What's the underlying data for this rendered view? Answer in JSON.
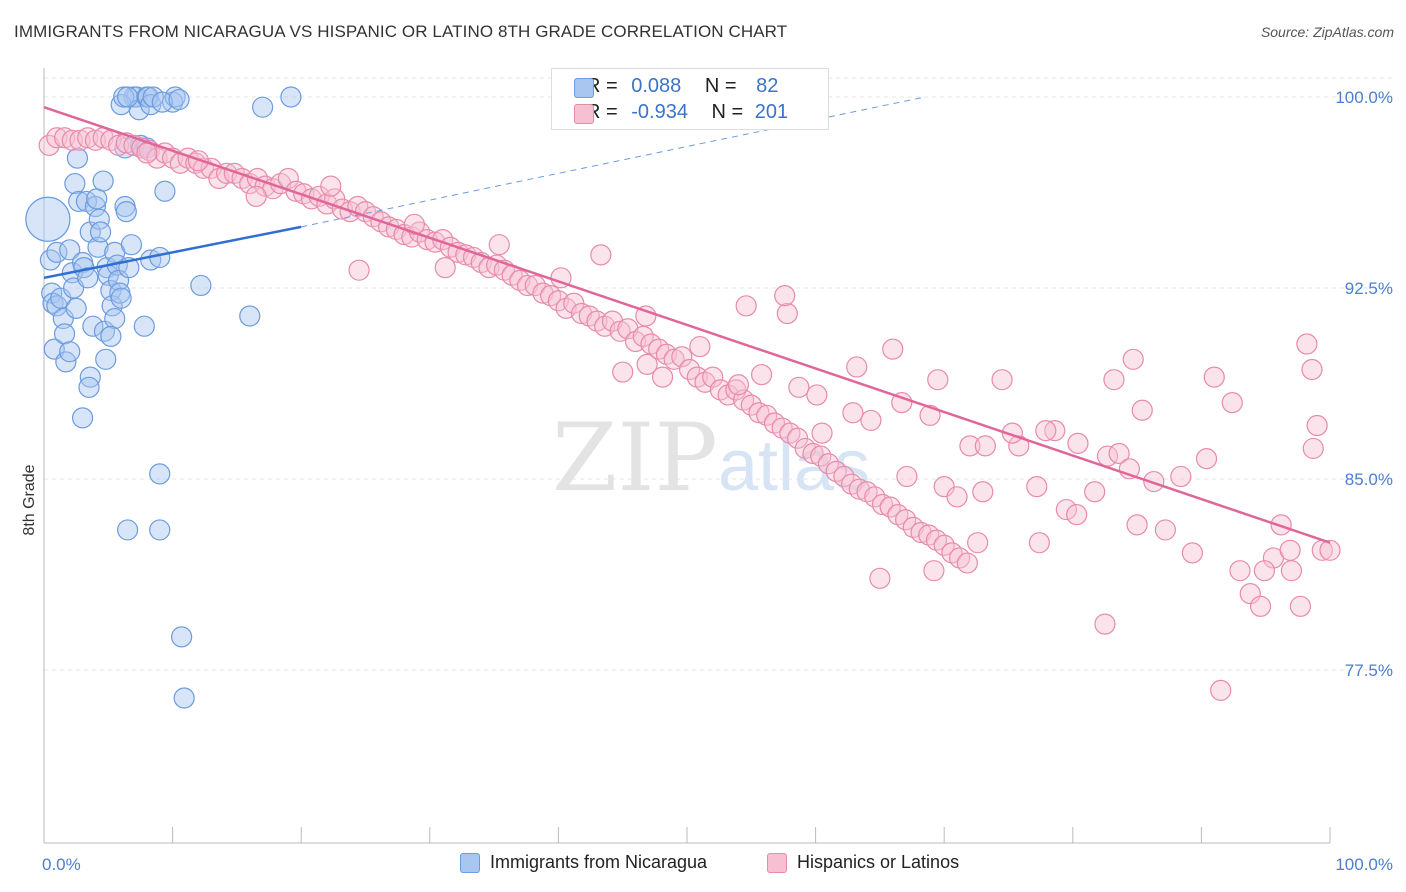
{
  "title": "IMMIGRANTS FROM NICARAGUA VS HISPANIC OR LATINO 8TH GRADE CORRELATION CHART",
  "source": "Source: ZipAtlas.com",
  "watermark": {
    "zip": "ZIP",
    "atlas": "atlas"
  },
  "legend": {
    "rows": [
      {
        "r_label": "R =",
        "r_value": "0.088",
        "n_label": "N =",
        "n_value": "82",
        "color": "#a9c6f0",
        "border": "#6b9be0"
      },
      {
        "r_label": "R =",
        "r_value": "-0.934",
        "n_label": "N =",
        "n_value": "201",
        "color": "#f7c0d2",
        "border": "#e88aaa"
      }
    ]
  },
  "bottom_legend": [
    {
      "label": "Immigrants from Nicaragua",
      "color": "#a9c6f0",
      "border": "#6b9be0"
    },
    {
      "label": "Hispanics or Latinos",
      "color": "#f7c0d2",
      "border": "#e88aaa"
    }
  ],
  "chart_data": {
    "type": "scatter",
    "title": "IMMIGRANTS FROM NICARAGUA VS HISPANIC OR LATINO 8TH GRADE CORRELATION CHART",
    "xlabel": "",
    "ylabel": "8th Grade",
    "xlim": [
      0,
      100
    ],
    "ylim": [
      70,
      101.5
    ],
    "y_ticks": [
      77.5,
      85.0,
      92.5,
      100.0
    ],
    "y_tick_labels": [
      "77.5%",
      "85.0%",
      "92.5%",
      "100.0%"
    ],
    "x_tick_labels": [
      "0.0%",
      "100.0%"
    ],
    "grid": true,
    "series": [
      {
        "name": "Immigrants from Nicaragua",
        "color": "#6b9be0",
        "fill": "#a9c6f0",
        "trend": {
          "x": [
            0,
            20
          ],
          "y": [
            92.9,
            94.9
          ],
          "dashed_to": [
            68.5,
            100.0
          ]
        },
        "points": [
          [
            0.3,
            95.2
          ],
          [
            0.5,
            93.6
          ],
          [
            0.6,
            92.3
          ],
          [
            0.7,
            91.9
          ],
          [
            1.0,
            93.9
          ],
          [
            1.0,
            91.8
          ],
          [
            1.3,
            92.1
          ],
          [
            1.5,
            91.3
          ],
          [
            0.8,
            90.1
          ],
          [
            1.7,
            89.6
          ],
          [
            1.6,
            90.7
          ],
          [
            2.0,
            90.0
          ],
          [
            2.2,
            93.1
          ],
          [
            2.0,
            94.0
          ],
          [
            2.3,
            92.5
          ],
          [
            2.5,
            91.7
          ],
          [
            2.6,
            97.6
          ],
          [
            2.4,
            96.6
          ],
          [
            2.7,
            95.9
          ],
          [
            3.0,
            93.5
          ],
          [
            3.3,
            95.9
          ],
          [
            3.1,
            93.3
          ],
          [
            3.4,
            92.9
          ],
          [
            3.6,
            94.7
          ],
          [
            3.8,
            91.0
          ],
          [
            3.6,
            89.0
          ],
          [
            3.5,
            88.6
          ],
          [
            3.0,
            87.4
          ],
          [
            4.0,
            95.7
          ],
          [
            4.1,
            96.0
          ],
          [
            4.2,
            94.1
          ],
          [
            4.3,
            95.2
          ],
          [
            4.4,
            94.7
          ],
          [
            4.6,
            96.7
          ],
          [
            4.9,
            93.3
          ],
          [
            5.0,
            93.0
          ],
          [
            5.2,
            92.4
          ],
          [
            4.7,
            90.8
          ],
          [
            4.8,
            89.7
          ],
          [
            5.3,
            91.8
          ],
          [
            5.5,
            91.3
          ],
          [
            5.2,
            90.6
          ],
          [
            5.5,
            93.9
          ],
          [
            5.7,
            93.4
          ],
          [
            5.8,
            92.8
          ],
          [
            5.9,
            92.3
          ],
          [
            6.0,
            92.1
          ],
          [
            6.3,
            95.7
          ],
          [
            6.4,
            95.5
          ],
          [
            6.6,
            93.3
          ],
          [
            6.8,
            94.2
          ],
          [
            7.0,
            100.0
          ],
          [
            7.2,
            100.0
          ],
          [
            7.4,
            99.5
          ],
          [
            6.0,
            99.7
          ],
          [
            6.2,
            100.0
          ],
          [
            6.5,
            100.0
          ],
          [
            6.3,
            98.0
          ],
          [
            7.6,
            98.0
          ],
          [
            8.0,
            100.0
          ],
          [
            8.1,
            100.0
          ],
          [
            8.3,
            99.7
          ],
          [
            8.5,
            100.0
          ],
          [
            8.3,
            93.6
          ],
          [
            7.8,
            91.0
          ],
          [
            9.0,
            93.7
          ],
          [
            9.4,
            96.3
          ],
          [
            10.0,
            99.8
          ],
          [
            10.2,
            100.0
          ],
          [
            12.2,
            92.6
          ],
          [
            16.0,
            91.4
          ],
          [
            17.0,
            99.6
          ],
          [
            19.2,
            100.0
          ],
          [
            9.0,
            85.2
          ],
          [
            6.5,
            83.0
          ],
          [
            9.0,
            83.0
          ],
          [
            10.7,
            78.8
          ],
          [
            10.9,
            76.4
          ],
          [
            7.5,
            98.1
          ],
          [
            8.0,
            98.0
          ],
          [
            9.2,
            99.8
          ],
          [
            10.5,
            99.9
          ]
        ]
      },
      {
        "name": "Hispanics or Latinos",
        "color": "#e88aaa",
        "fill": "#f7c0d2",
        "trend": {
          "x": [
            0,
            100
          ],
          "y": [
            99.6,
            82.5
          ]
        },
        "points": [
          [
            0.4,
            98.1
          ],
          [
            1.0,
            98.4
          ],
          [
            1.6,
            98.4
          ],
          [
            2.2,
            98.3
          ],
          [
            2.8,
            98.3
          ],
          [
            3.4,
            98.4
          ],
          [
            4.0,
            98.3
          ],
          [
            4.6,
            98.4
          ],
          [
            5.2,
            98.3
          ],
          [
            5.8,
            98.1
          ],
          [
            6.4,
            98.2
          ],
          [
            7.0,
            98.1
          ],
          [
            7.6,
            98.0
          ],
          [
            8.2,
            97.9
          ],
          [
            8.8,
            97.6
          ],
          [
            9.4,
            97.8
          ],
          [
            10.0,
            97.6
          ],
          [
            10.6,
            97.4
          ],
          [
            11.2,
            97.6
          ],
          [
            11.8,
            97.4
          ],
          [
            12.4,
            97.2
          ],
          [
            13.0,
            97.2
          ],
          [
            13.6,
            96.8
          ],
          [
            14.2,
            97.0
          ],
          [
            14.8,
            97.0
          ],
          [
            15.4,
            96.8
          ],
          [
            16.0,
            96.6
          ],
          [
            16.6,
            96.8
          ],
          [
            17.2,
            96.5
          ],
          [
            17.8,
            96.4
          ],
          [
            18.4,
            96.6
          ],
          [
            19.0,
            96.8
          ],
          [
            19.6,
            96.3
          ],
          [
            20.2,
            96.2
          ],
          [
            20.8,
            96.0
          ],
          [
            21.4,
            96.1
          ],
          [
            22.0,
            95.8
          ],
          [
            22.6,
            96.0
          ],
          [
            23.2,
            95.6
          ],
          [
            23.8,
            95.5
          ],
          [
            24.4,
            95.7
          ],
          [
            25.0,
            95.5
          ],
          [
            25.6,
            95.3
          ],
          [
            26.2,
            95.1
          ],
          [
            26.8,
            94.9
          ],
          [
            27.4,
            94.8
          ],
          [
            28.0,
            94.6
          ],
          [
            28.6,
            94.5
          ],
          [
            29.2,
            94.7
          ],
          [
            29.8,
            94.4
          ],
          [
            30.4,
            94.3
          ],
          [
            31.0,
            94.4
          ],
          [
            31.6,
            94.1
          ],
          [
            32.2,
            93.9
          ],
          [
            32.8,
            93.8
          ],
          [
            33.4,
            93.7
          ],
          [
            34.0,
            93.5
          ],
          [
            34.6,
            93.3
          ],
          [
            35.2,
            93.4
          ],
          [
            35.8,
            93.2
          ],
          [
            36.4,
            93.0
          ],
          [
            37.0,
            92.8
          ],
          [
            37.6,
            92.6
          ],
          [
            38.2,
            92.6
          ],
          [
            38.8,
            92.3
          ],
          [
            39.4,
            92.2
          ],
          [
            40.0,
            92.0
          ],
          [
            40.6,
            91.7
          ],
          [
            41.2,
            91.9
          ],
          [
            41.8,
            91.5
          ],
          [
            42.4,
            91.4
          ],
          [
            43.0,
            91.2
          ],
          [
            43.6,
            91.0
          ],
          [
            44.2,
            91.2
          ],
          [
            44.8,
            90.8
          ],
          [
            45.4,
            90.9
          ],
          [
            46.0,
            90.4
          ],
          [
            46.6,
            90.6
          ],
          [
            47.2,
            90.3
          ],
          [
            47.8,
            90.1
          ],
          [
            48.4,
            89.9
          ],
          [
            49.0,
            89.7
          ],
          [
            49.6,
            89.8
          ],
          [
            50.2,
            89.3
          ],
          [
            50.8,
            89.0
          ],
          [
            51.4,
            88.8
          ],
          [
            52.0,
            89.0
          ],
          [
            52.6,
            88.5
          ],
          [
            53.2,
            88.3
          ],
          [
            53.8,
            88.5
          ],
          [
            54.4,
            88.1
          ],
          [
            55.0,
            87.9
          ],
          [
            55.6,
            87.6
          ],
          [
            56.2,
            87.5
          ],
          [
            56.8,
            87.2
          ],
          [
            57.4,
            87.0
          ],
          [
            58.0,
            86.8
          ],
          [
            58.6,
            86.6
          ],
          [
            59.2,
            86.2
          ],
          [
            59.8,
            86.0
          ],
          [
            60.4,
            85.9
          ],
          [
            61.0,
            85.6
          ],
          [
            61.6,
            85.3
          ],
          [
            62.2,
            85.1
          ],
          [
            62.8,
            84.8
          ],
          [
            63.4,
            84.6
          ],
          [
            64.0,
            84.5
          ],
          [
            64.6,
            84.3
          ],
          [
            65.2,
            84.0
          ],
          [
            65.8,
            83.9
          ],
          [
            66.4,
            83.6
          ],
          [
            67.0,
            83.4
          ],
          [
            67.6,
            83.1
          ],
          [
            68.2,
            82.9
          ],
          [
            68.8,
            82.8
          ],
          [
            69.4,
            82.6
          ],
          [
            70.0,
            82.4
          ],
          [
            70.6,
            82.1
          ],
          [
            71.2,
            81.9
          ],
          [
            71.8,
            81.7
          ],
          [
            8.0,
            97.8
          ],
          [
            12.0,
            97.5
          ],
          [
            16.5,
            96.1
          ],
          [
            22.3,
            96.5
          ],
          [
            28.8,
            95.0
          ],
          [
            24.5,
            93.2
          ],
          [
            31.2,
            93.3
          ],
          [
            35.4,
            94.2
          ],
          [
            40.2,
            92.9
          ],
          [
            43.3,
            93.8
          ],
          [
            45.0,
            89.2
          ],
          [
            46.8,
            91.4
          ],
          [
            51.0,
            90.2
          ],
          [
            54.6,
            91.8
          ],
          [
            55.8,
            89.1
          ],
          [
            57.8,
            91.5
          ],
          [
            60.5,
            86.8
          ],
          [
            63.2,
            89.4
          ],
          [
            64.3,
            87.3
          ],
          [
            66.0,
            90.1
          ],
          [
            67.1,
            85.1
          ],
          [
            68.9,
            87.5
          ],
          [
            70.0,
            84.7
          ],
          [
            72.0,
            86.3
          ],
          [
            73.0,
            84.5
          ],
          [
            74.5,
            88.9
          ],
          [
            75.8,
            86.3
          ],
          [
            77.2,
            84.7
          ],
          [
            78.6,
            86.9
          ],
          [
            79.5,
            83.8
          ],
          [
            80.4,
            86.4
          ],
          [
            81.7,
            84.5
          ],
          [
            82.7,
            85.9
          ],
          [
            83.6,
            86.0
          ],
          [
            84.4,
            85.4
          ],
          [
            85.4,
            87.7
          ],
          [
            86.3,
            84.9
          ],
          [
            87.2,
            83.0
          ],
          [
            88.4,
            85.1
          ],
          [
            89.3,
            82.1
          ],
          [
            90.4,
            85.8
          ],
          [
            91.0,
            89.0
          ],
          [
            92.4,
            88.0
          ],
          [
            93.0,
            81.4
          ],
          [
            93.8,
            80.5
          ],
          [
            94.6,
            80.0
          ],
          [
            95.6,
            81.9
          ],
          [
            96.9,
            82.2
          ],
          [
            97.7,
            80.0
          ],
          [
            98.7,
            86.2
          ],
          [
            99.0,
            87.1
          ],
          [
            98.2,
            90.3
          ],
          [
            98.6,
            89.3
          ],
          [
            48.1,
            89.0
          ],
          [
            46.9,
            89.5
          ],
          [
            54.0,
            88.7
          ],
          [
            58.7,
            88.6
          ],
          [
            65.0,
            81.1
          ],
          [
            69.2,
            81.4
          ],
          [
            72.6,
            82.5
          ],
          [
            77.4,
            82.5
          ],
          [
            80.3,
            83.6
          ],
          [
            82.5,
            79.3
          ],
          [
            85.0,
            83.2
          ],
          [
            91.5,
            76.7
          ],
          [
            94.9,
            81.4
          ],
          [
            96.2,
            83.2
          ],
          [
            97.0,
            81.4
          ],
          [
            99.4,
            82.2
          ],
          [
            100.0,
            82.2
          ],
          [
            83.2,
            88.9
          ],
          [
            84.7,
            89.7
          ],
          [
            77.9,
            86.9
          ],
          [
            75.3,
            86.8
          ],
          [
            71.0,
            84.3
          ],
          [
            69.5,
            88.9
          ],
          [
            73.2,
            86.3
          ],
          [
            66.7,
            88.0
          ],
          [
            62.9,
            87.6
          ],
          [
            60.1,
            88.3
          ],
          [
            57.6,
            92.2
          ]
        ]
      }
    ]
  }
}
